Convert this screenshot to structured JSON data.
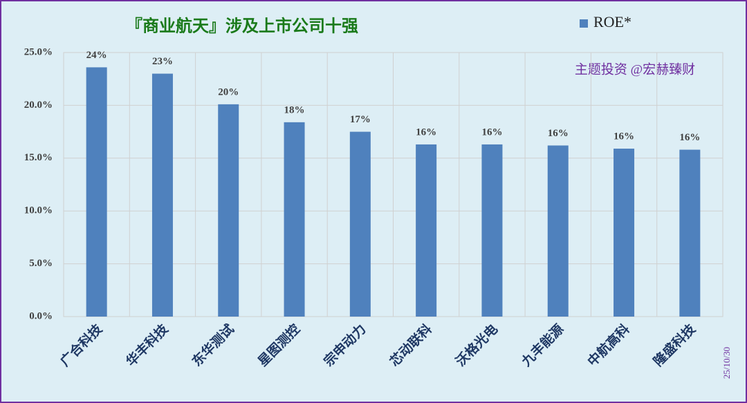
{
  "chart_data": {
    "type": "bar",
    "title": "『商业航天』涉及上市公司十强",
    "annotations": [
      "主题投资 @宏赫臻财",
      "25/10/30"
    ],
    "categories": [
      "广合科技",
      "华丰科技",
      "东华测试",
      "星图测控",
      "宗申动力",
      "芯动联科",
      "沃格光电",
      "九丰能源",
      "中航高科",
      "隆盛科技"
    ],
    "series": [
      {
        "name": "ROE*",
        "color": "#4f81bd",
        "values": [
          23.6,
          23.0,
          20.1,
          18.4,
          17.5,
          16.3,
          16.3,
          16.2,
          15.9,
          15.8
        ],
        "value_labels": [
          "24%",
          "23%",
          "20%",
          "18%",
          "17%",
          "16%",
          "16%",
          "16%",
          "16%",
          "16%"
        ]
      }
    ],
    "ylim": [
      0,
      25
    ],
    "yticks": [
      {
        "value": 0,
        "label": "0.0%"
      },
      {
        "value": 5,
        "label": "5.0%"
      },
      {
        "value": 10,
        "label": "10.0%"
      },
      {
        "value": 15,
        "label": "15.0%"
      },
      {
        "value": 20,
        "label": "20.0%"
      },
      {
        "value": 25,
        "label": "25.0%"
      }
    ],
    "grid": true,
    "legend": "top-right"
  }
}
